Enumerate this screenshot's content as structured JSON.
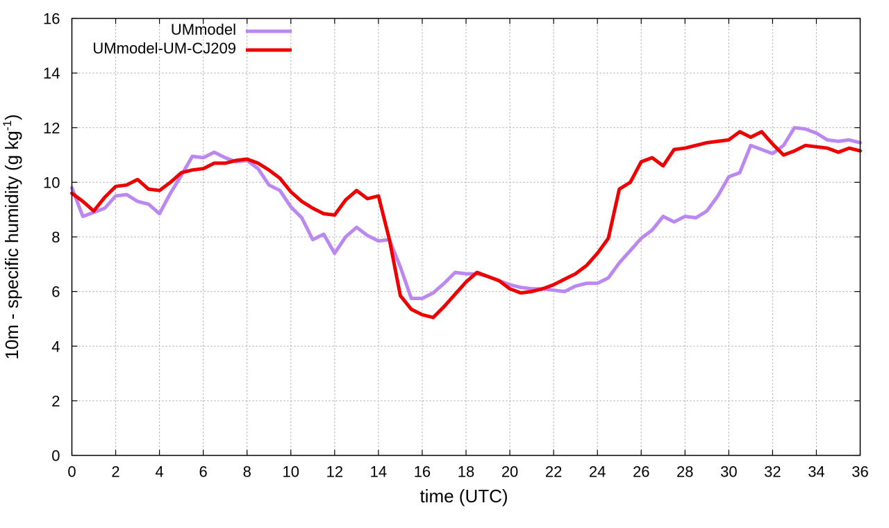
{
  "chart_data": {
    "type": "line",
    "title": "",
    "xlabel": "time (UTC)",
    "ylabel": "10m - specific humidity (g kg",
    "ylabel_sup": "-1",
    "ylabel_close": ")",
    "xlim": [
      0,
      36
    ],
    "ylim": [
      0,
      16
    ],
    "xticks": [
      0,
      2,
      4,
      6,
      8,
      10,
      12,
      14,
      16,
      18,
      20,
      22,
      24,
      26,
      28,
      30,
      32,
      34,
      36
    ],
    "yticks": [
      0,
      2,
      4,
      6,
      8,
      10,
      12,
      14,
      16
    ],
    "grid": true,
    "legend_position": "top-left",
    "series": [
      {
        "name": "UMmodel",
        "color": "#bb88f2",
        "points": [
          [
            0,
            9.8
          ],
          [
            0.5,
            8.75
          ],
          [
            1,
            8.9
          ],
          [
            1.5,
            9.05
          ],
          [
            2,
            9.5
          ],
          [
            2.5,
            9.55
          ],
          [
            3,
            9.3
          ],
          [
            3.5,
            9.2
          ],
          [
            4,
            8.85
          ],
          [
            4.5,
            9.6
          ],
          [
            5,
            10.25
          ],
          [
            5.5,
            10.95
          ],
          [
            6,
            10.9
          ],
          [
            6.5,
            11.1
          ],
          [
            7,
            10.9
          ],
          [
            7.5,
            10.75
          ],
          [
            8,
            10.8
          ],
          [
            8.5,
            10.5
          ],
          [
            9,
            9.9
          ],
          [
            9.5,
            9.7
          ],
          [
            10,
            9.1
          ],
          [
            10.5,
            8.7
          ],
          [
            11,
            7.9
          ],
          [
            11.5,
            8.1
          ],
          [
            12,
            7.4
          ],
          [
            12.5,
            8.0
          ],
          [
            13,
            8.35
          ],
          [
            13.5,
            8.05
          ],
          [
            14,
            7.85
          ],
          [
            14.5,
            7.9
          ],
          [
            15,
            6.9
          ],
          [
            15.5,
            5.75
          ],
          [
            16,
            5.75
          ],
          [
            16.5,
            5.95
          ],
          [
            17,
            6.3
          ],
          [
            17.5,
            6.7
          ],
          [
            18,
            6.65
          ],
          [
            18.5,
            6.65
          ],
          [
            19,
            6.55
          ],
          [
            19.5,
            6.4
          ],
          [
            20,
            6.25
          ],
          [
            20.5,
            6.15
          ],
          [
            21,
            6.1
          ],
          [
            21.5,
            6.1
          ],
          [
            22,
            6.05
          ],
          [
            22.5,
            6.0
          ],
          [
            23,
            6.2
          ],
          [
            23.5,
            6.3
          ],
          [
            24,
            6.3
          ],
          [
            24.5,
            6.5
          ],
          [
            25,
            7.05
          ],
          [
            25.5,
            7.5
          ],
          [
            26,
            7.95
          ],
          [
            26.5,
            8.25
          ],
          [
            27,
            8.75
          ],
          [
            27.5,
            8.55
          ],
          [
            28,
            8.75
          ],
          [
            28.5,
            8.7
          ],
          [
            29,
            8.95
          ],
          [
            29.5,
            9.5
          ],
          [
            30,
            10.2
          ],
          [
            30.5,
            10.35
          ],
          [
            31,
            11.35
          ],
          [
            31.5,
            11.2
          ],
          [
            32,
            11.05
          ],
          [
            32.5,
            11.35
          ],
          [
            33,
            12.0
          ],
          [
            33.5,
            11.95
          ],
          [
            34,
            11.8
          ],
          [
            34.5,
            11.55
          ],
          [
            35,
            11.5
          ],
          [
            35.5,
            11.55
          ],
          [
            36,
            11.45
          ]
        ]
      },
      {
        "name": "UMmodel-UM-CJ209",
        "color": "#ee0000",
        "points": [
          [
            0,
            9.6
          ],
          [
            0.5,
            9.3
          ],
          [
            1,
            8.95
          ],
          [
            1.5,
            9.45
          ],
          [
            2,
            9.85
          ],
          [
            2.5,
            9.9
          ],
          [
            3,
            10.1
          ],
          [
            3.5,
            9.75
          ],
          [
            4,
            9.7
          ],
          [
            4.5,
            10.0
          ],
          [
            5,
            10.35
          ],
          [
            5.5,
            10.45
          ],
          [
            6,
            10.5
          ],
          [
            6.5,
            10.7
          ],
          [
            7,
            10.7
          ],
          [
            7.5,
            10.8
          ],
          [
            8,
            10.85
          ],
          [
            8.5,
            10.7
          ],
          [
            9,
            10.45
          ],
          [
            9.5,
            10.15
          ],
          [
            10,
            9.65
          ],
          [
            10.5,
            9.3
          ],
          [
            11,
            9.05
          ],
          [
            11.5,
            8.85
          ],
          [
            12,
            8.8
          ],
          [
            12.5,
            9.35
          ],
          [
            13,
            9.7
          ],
          [
            13.5,
            9.4
          ],
          [
            14,
            9.5
          ],
          [
            14.5,
            7.9
          ],
          [
            15,
            5.85
          ],
          [
            15.5,
            5.35
          ],
          [
            16,
            5.15
          ],
          [
            16.5,
            5.05
          ],
          [
            17,
            5.45
          ],
          [
            17.5,
            5.9
          ],
          [
            18,
            6.35
          ],
          [
            18.5,
            6.7
          ],
          [
            19,
            6.55
          ],
          [
            19.5,
            6.4
          ],
          [
            20,
            6.1
          ],
          [
            20.5,
            5.95
          ],
          [
            21,
            6.0
          ],
          [
            21.5,
            6.1
          ],
          [
            22,
            6.25
          ],
          [
            22.5,
            6.45
          ],
          [
            23,
            6.65
          ],
          [
            23.5,
            6.95
          ],
          [
            24,
            7.4
          ],
          [
            24.5,
            7.95
          ],
          [
            25,
            9.75
          ],
          [
            25.5,
            10.0
          ],
          [
            26,
            10.75
          ],
          [
            26.5,
            10.9
          ],
          [
            27,
            10.6
          ],
          [
            27.5,
            11.2
          ],
          [
            28,
            11.25
          ],
          [
            28.5,
            11.35
          ],
          [
            29,
            11.45
          ],
          [
            29.5,
            11.5
          ],
          [
            30,
            11.55
          ],
          [
            30.5,
            11.85
          ],
          [
            31,
            11.65
          ],
          [
            31.5,
            11.85
          ],
          [
            32,
            11.4
          ],
          [
            32.5,
            11.0
          ],
          [
            33,
            11.15
          ],
          [
            33.5,
            11.35
          ],
          [
            34,
            11.3
          ],
          [
            34.5,
            11.25
          ],
          [
            35,
            11.1
          ],
          [
            35.5,
            11.25
          ],
          [
            36,
            11.15
          ]
        ]
      }
    ]
  }
}
